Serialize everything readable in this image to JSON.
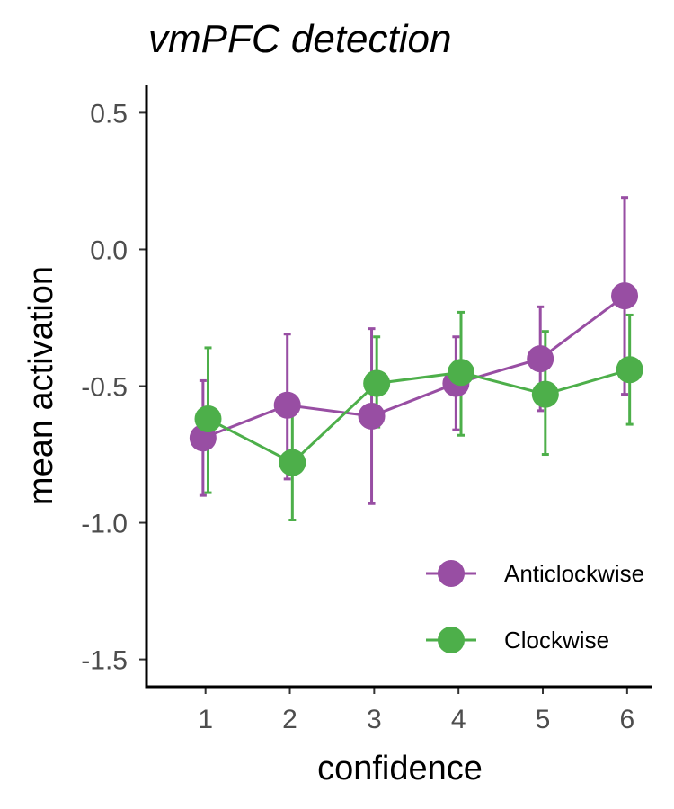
{
  "chart_data": {
    "type": "line",
    "title": "vmPFC detection",
    "xlabel": "confidence",
    "ylabel": "mean activation",
    "x": [
      1,
      2,
      3,
      4,
      5,
      6
    ],
    "x_ticks": [
      "1",
      "2",
      "3",
      "4",
      "5",
      "6"
    ],
    "xlim": [
      0.3,
      6.3
    ],
    "ylim": [
      -1.6,
      0.6
    ],
    "y_ticks": [
      0.5,
      0.0,
      -0.5,
      -1.0,
      -1.5
    ],
    "y_tick_labels": [
      "0.5",
      "0.0",
      "-0.5",
      "-1.0",
      "-1.5"
    ],
    "grid": false,
    "legend_position": "bottom-right",
    "series": [
      {
        "name": "Anticlockwise",
        "color": "#984ea3",
        "values": [
          -0.69,
          -0.57,
          -0.61,
          -0.49,
          -0.4,
          -0.17
        ],
        "error_low": [
          -0.9,
          -0.84,
          -0.93,
          -0.66,
          -0.59,
          -0.53
        ],
        "error_high": [
          -0.48,
          -0.31,
          -0.29,
          -0.32,
          -0.21,
          0.19
        ]
      },
      {
        "name": "Clockwise",
        "color": "#4daf4a",
        "values": [
          -0.62,
          -0.78,
          -0.49,
          -0.45,
          -0.53,
          -0.44
        ],
        "error_low": [
          -0.89,
          -0.99,
          -0.65,
          -0.68,
          -0.75,
          -0.64
        ],
        "error_high": [
          -0.36,
          -0.57,
          -0.32,
          -0.23,
          -0.3,
          -0.24
        ]
      }
    ]
  }
}
